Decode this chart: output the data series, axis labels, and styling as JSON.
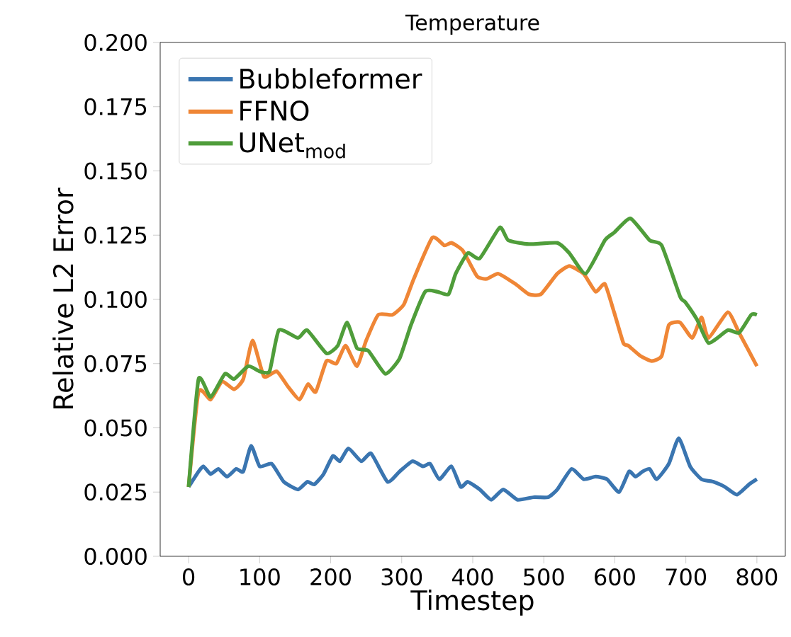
{
  "chart_data": {
    "type": "line",
    "title": "Temperature",
    "xlabel": "Timestep",
    "ylabel": "Relative L2 Error",
    "xlim": [
      -40,
      840
    ],
    "xticks": [
      0,
      100,
      200,
      300,
      400,
      500,
      600,
      700,
      800
    ],
    "ylim": [
      0,
      0.2
    ],
    "yticks": [
      {
        "value": 0,
        "label": "0.000"
      },
      {
        "value": 0.025,
        "label": "0.025"
      },
      {
        "value": 0.05,
        "label": "0.050"
      },
      {
        "value": 0.075,
        "label": "0.075"
      },
      {
        "value": 0.1,
        "label": "0.100"
      },
      {
        "value": 0.125,
        "label": "0.125"
      },
      {
        "value": 0.15,
        "label": "0.150"
      },
      {
        "value": 0.175,
        "label": "0.175"
      },
      {
        "value": 0.2,
        "label": "0.200"
      }
    ],
    "legend": "top left",
    "grid": false,
    "series": [
      {
        "name": "Bubbleformer",
        "color": "#3a75b0",
        "x": [
          0,
          14,
          21,
          31,
          42,
          54,
          67,
          77,
          88,
          100,
          117,
          134,
          154,
          167,
          177,
          190,
          203,
          213,
          225,
          243,
          257,
          280,
          297,
          315,
          330,
          340,
          353,
          370,
          383,
          393,
          410,
          426,
          443,
          463,
          486,
          506,
          519,
          539,
          556,
          573,
          589,
          606,
          620,
          629,
          639,
          649,
          659,
          676,
          690,
          706,
          722,
          739,
          755,
          772,
          789,
          800
        ],
        "values": [
          0.027,
          0.033,
          0.035,
          0.032,
          0.034,
          0.031,
          0.034,
          0.033,
          0.043,
          0.035,
          0.036,
          0.029,
          0.026,
          0.029,
          0.028,
          0.032,
          0.039,
          0.037,
          0.042,
          0.037,
          0.04,
          0.029,
          0.033,
          0.037,
          0.035,
          0.036,
          0.03,
          0.035,
          0.027,
          0.029,
          0.026,
          0.022,
          0.026,
          0.022,
          0.023,
          0.023,
          0.026,
          0.034,
          0.03,
          0.031,
          0.03,
          0.025,
          0.033,
          0.031,
          0.033,
          0.034,
          0.03,
          0.036,
          0.046,
          0.035,
          0.03,
          0.029,
          0.027,
          0.024,
          0.028,
          0.03
        ]
      },
      {
        "name": "FFNO",
        "color": "#ef8636",
        "x": [
          0,
          14,
          31,
          47,
          64,
          77,
          90,
          106,
          124,
          140,
          156,
          168,
          179,
          194,
          208,
          221,
          237,
          250,
          267,
          287,
          303,
          317,
          343,
          360,
          370,
          386,
          406,
          420,
          436,
          460,
          479,
          496,
          519,
          536,
          556,
          573,
          586,
          599,
          612,
          619,
          636,
          652,
          666,
          676,
          692,
          709,
          722,
          732,
          759,
          775,
          800
        ],
        "values": [
          0.027,
          0.064,
          0.061,
          0.068,
          0.065,
          0.069,
          0.084,
          0.07,
          0.072,
          0.066,
          0.061,
          0.067,
          0.064,
          0.076,
          0.075,
          0.082,
          0.074,
          0.084,
          0.094,
          0.094,
          0.098,
          0.108,
          0.124,
          0.121,
          0.122,
          0.119,
          0.109,
          0.108,
          0.11,
          0.106,
          0.102,
          0.102,
          0.11,
          0.113,
          0.11,
          0.103,
          0.106,
          0.095,
          0.083,
          0.082,
          0.078,
          0.076,
          0.078,
          0.09,
          0.091,
          0.085,
          0.093,
          0.085,
          0.095,
          0.087,
          0.074
        ]
      },
      {
        "name": "UNet$_{mod}$",
        "color": "#4f9d3a",
        "x": [
          0,
          14,
          31,
          51,
          64,
          84,
          100,
          114,
          127,
          154,
          167,
          194,
          210,
          223,
          237,
          253,
          277,
          297,
          313,
          333,
          350,
          366,
          376,
          393,
          410,
          438,
          450,
          479,
          519,
          536,
          559,
          586,
          599,
          622,
          649,
          666,
          692,
          699,
          716,
          732,
          759,
          775,
          792,
          800
        ],
        "values": [
          0.027,
          0.069,
          0.062,
          0.071,
          0.069,
          0.074,
          0.072,
          0.072,
          0.088,
          0.085,
          0.088,
          0.079,
          0.082,
          0.091,
          0.081,
          0.08,
          0.071,
          0.077,
          0.09,
          0.103,
          0.103,
          0.102,
          0.11,
          0.118,
          0.116,
          0.128,
          0.123,
          0.1215,
          0.122,
          0.118,
          0.11,
          0.123,
          0.126,
          0.1315,
          0.123,
          0.121,
          0.101,
          0.099,
          0.092,
          0.083,
          0.088,
          0.087,
          0.094,
          0.094
        ]
      }
    ]
  }
}
